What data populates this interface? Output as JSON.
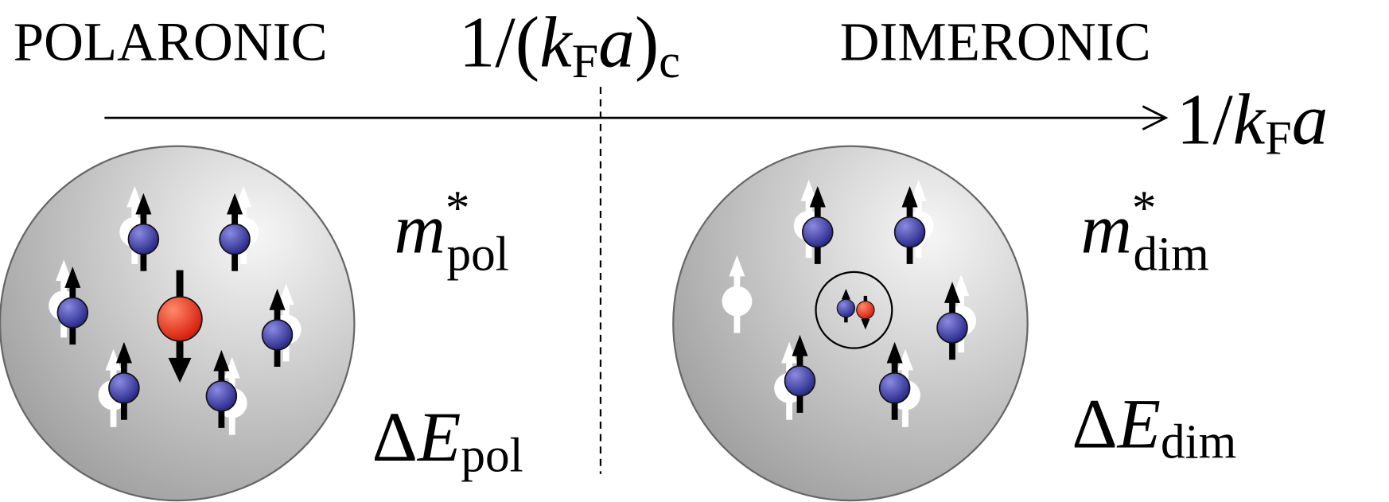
{
  "regions": {
    "left": "POLARONIC",
    "right": "DIMERONIC"
  },
  "critical_label": {
    "one": "1/(",
    "k": "k",
    "k_sub": "F",
    "a": "a",
    "close": ")",
    "sub": "c"
  },
  "axis_label": {
    "one": "1/",
    "k": "k",
    "k_sub": "F",
    "a": "a"
  },
  "polaron": {
    "mass": {
      "m": "m",
      "sup": "*",
      "sub": "pol"
    },
    "energy": {
      "delta": "Δ",
      "E": "E",
      "sub": "pol"
    }
  },
  "dimeron": {
    "mass": {
      "m": "m",
      "sup": "*",
      "sub": "dim"
    },
    "energy": {
      "delta": "Δ",
      "E": "E",
      "sub": "dim"
    }
  }
}
